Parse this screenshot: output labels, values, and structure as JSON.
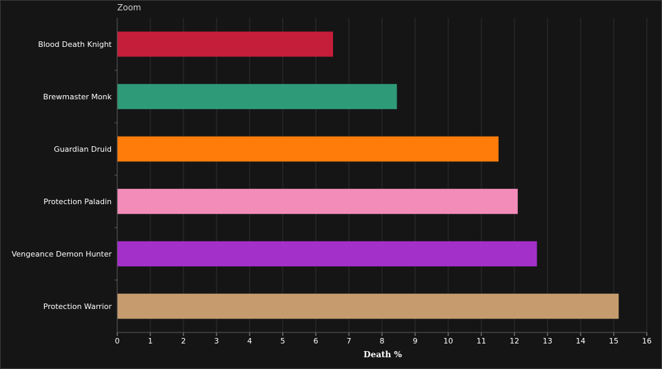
{
  "zoom_label": "Zoom",
  "chart_data": {
    "type": "bar",
    "orientation": "horizontal",
    "categories": [
      "Blood Death Knight",
      "Brewmaster Monk",
      "Guardian Druid",
      "Protection Paladin",
      "Vengeance Demon Hunter",
      "Protection Warrior"
    ],
    "values": [
      6.52,
      8.45,
      11.52,
      12.1,
      12.68,
      15.15
    ],
    "colors": [
      "#C41E3A",
      "#2E9A78",
      "#FF7C0A",
      "#F48CBA",
      "#A330C9",
      "#C69B6D"
    ],
    "xlabel": "Death %",
    "xlim": [
      0,
      16
    ],
    "xticks": [
      0,
      1,
      2,
      3,
      4,
      5,
      6,
      7,
      8,
      9,
      10,
      11,
      12,
      13,
      14,
      15,
      16
    ],
    "grid": true,
    "legend": "none"
  }
}
